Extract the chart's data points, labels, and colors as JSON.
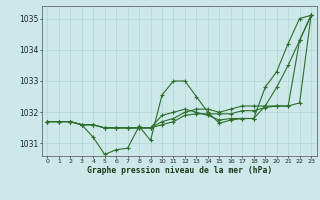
{
  "title": "Graphe pression niveau de la mer (hPa)",
  "bg_color": "#cce8e8",
  "grid_color": "#b8d8d8",
  "line_color": "#2d6e2d",
  "ylim": [
    1030.6,
    1035.4
  ],
  "yticks": [
    1031,
    1032,
    1033,
    1034,
    1035
  ],
  "xlim": [
    -0.5,
    23.5
  ],
  "series": [
    [
      1031.7,
      1031.7,
      1031.7,
      1031.6,
      1031.2,
      1030.65,
      1030.8,
      1030.85,
      1031.55,
      1031.1,
      1032.55,
      1033.0,
      1033.0,
      1032.5,
      1032.0,
      1031.65,
      1031.75,
      1031.8,
      1031.8,
      1032.8,
      1033.3,
      1034.2,
      1035.0,
      1035.1
    ],
    [
      1031.7,
      1031.7,
      1031.7,
      1031.6,
      1031.6,
      1031.5,
      1031.5,
      1031.5,
      1031.5,
      1031.5,
      1031.9,
      1032.0,
      1032.1,
      1032.0,
      1031.9,
      1031.75,
      1031.8,
      1031.8,
      1031.8,
      1032.2,
      1032.8,
      1033.5,
      1034.3,
      1035.1
    ],
    [
      1031.7,
      1031.7,
      1031.7,
      1031.6,
      1031.6,
      1031.5,
      1031.5,
      1031.5,
      1031.5,
      1031.5,
      1031.7,
      1031.8,
      1032.0,
      1032.1,
      1032.1,
      1032.0,
      1032.1,
      1032.2,
      1032.2,
      1032.2,
      1032.2,
      1032.2,
      1034.3,
      1035.1
    ],
    [
      1031.7,
      1031.7,
      1031.7,
      1031.6,
      1031.6,
      1031.5,
      1031.5,
      1031.5,
      1031.5,
      1031.5,
      1031.6,
      1031.7,
      1031.9,
      1031.95,
      1031.95,
      1031.95,
      1031.95,
      1032.05,
      1032.05,
      1032.15,
      1032.2,
      1032.2,
      1032.3,
      1035.1
    ]
  ]
}
